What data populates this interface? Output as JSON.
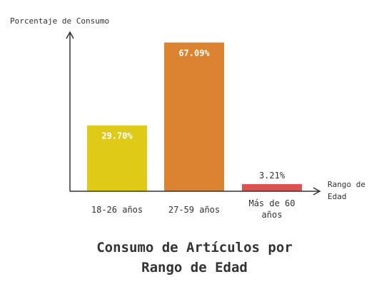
{
  "chart_data": {
    "type": "bar",
    "title_line1": "Consumo de Artículos por",
    "title_line2": "Rango de Edad",
    "ylabel": "Porcentaje de Consumo",
    "xlabel_line1": "Rango de",
    "xlabel_line2": "Edad",
    "ylim": [
      0,
      75
    ],
    "grid": false,
    "categories": [
      {
        "lines": [
          "18-26 años"
        ]
      },
      {
        "lines": [
          "27-59 años"
        ]
      },
      {
        "lines": [
          "Más de 60",
          "años"
        ]
      }
    ],
    "values": [
      29.7,
      67.09,
      3.21
    ],
    "labels": [
      "29.70%",
      "67.09%",
      "3.21%"
    ],
    "colors": [
      "#dfcb17",
      "#db8330",
      "#d9534f"
    ]
  }
}
